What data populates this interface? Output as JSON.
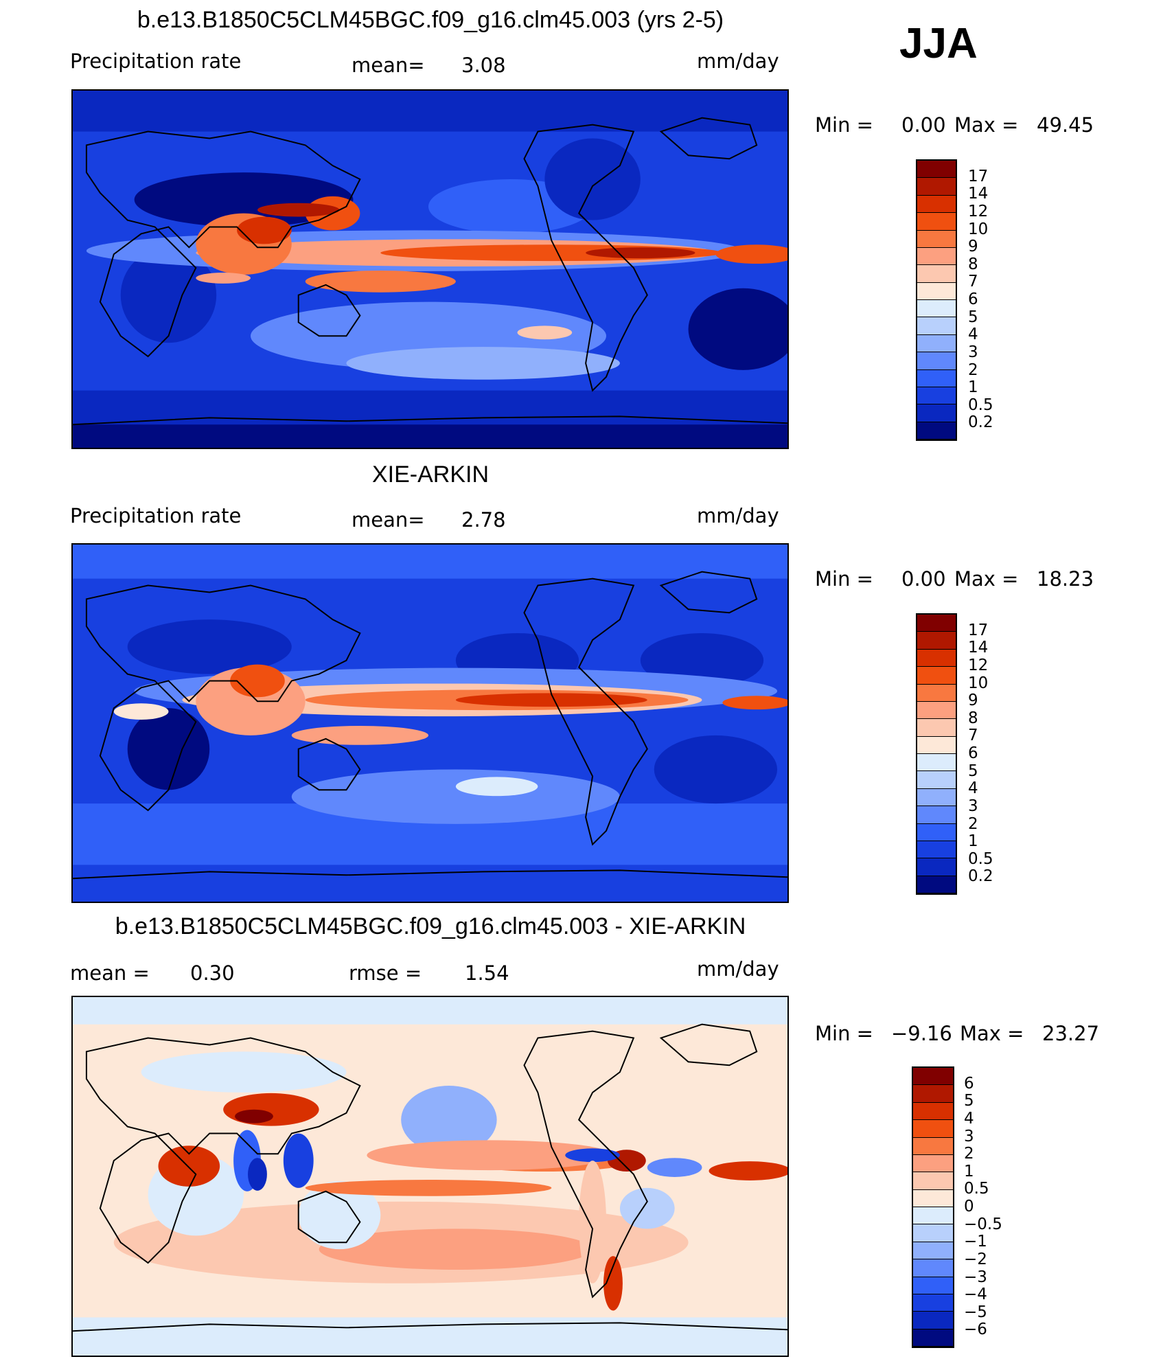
{
  "season": "JJA",
  "panels": [
    {
      "title": "b.e13.B1850C5CLM45BGC.f09_g16.clm45.003 (yrs 2-5)",
      "left_label": "Precipitation  rate",
      "stat_label": "mean=",
      "stat_value": "3.08",
      "units": "mm/day",
      "min_label": "Min  =",
      "min_value": "0.00",
      "max_label": "Max  =",
      "max_value": "49.45",
      "colorbar": {
        "labels": [
          "17",
          "14",
          "12",
          "10",
          "9",
          "8",
          "7",
          "6",
          "5",
          "4",
          "3",
          "2",
          "1",
          "0.5",
          "0.2"
        ],
        "colors": [
          "#800000",
          "#b01800",
          "#d83000",
          "#f05010",
          "#f87840",
          "#fca080",
          "#fcc8b0",
          "#fde8d8",
          "#dcecfc",
          "#b8d0fc",
          "#90b0fc",
          "#6088fc",
          "#3060f8",
          "#1840e0",
          "#0a28c0",
          "#000a80"
        ]
      }
    },
    {
      "title": "XIE-ARKIN",
      "left_label": "Precipitation  rate",
      "stat_label": "mean=",
      "stat_value": "2.78",
      "units": "mm/day",
      "min_label": "Min  =",
      "min_value": "0.00",
      "max_label": "Max  =",
      "max_value": "18.23",
      "colorbar": {
        "labels": [
          "17",
          "14",
          "12",
          "10",
          "9",
          "8",
          "7",
          "6",
          "5",
          "4",
          "3",
          "2",
          "1",
          "0.5",
          "0.2"
        ],
        "colors": [
          "#800000",
          "#b01800",
          "#d83000",
          "#f05010",
          "#f87840",
          "#fca080",
          "#fcc8b0",
          "#fde8d8",
          "#dcecfc",
          "#b8d0fc",
          "#90b0fc",
          "#6088fc",
          "#3060f8",
          "#1840e0",
          "#0a28c0",
          "#000a80"
        ]
      }
    },
    {
      "title": "b.e13.B1850C5CLM45BGC.f09_g16.clm45.003 - XIE-ARKIN",
      "left_label": "mean  =",
      "left_value": "0.30",
      "stat_label": "rmse  =",
      "stat_value": "1.54",
      "units": "mm/day",
      "min_label": "Min  =",
      "min_value": "−9.16",
      "max_label": "Max  =",
      "max_value": "23.27",
      "colorbar": {
        "labels": [
          "6",
          "5",
          "4",
          "3",
          "2",
          "1",
          "0.5",
          "0",
          "−0.5",
          "−1",
          "−2",
          "−3",
          "−4",
          "−5",
          "−6"
        ],
        "colors": [
          "#800000",
          "#b01800",
          "#d83000",
          "#f05010",
          "#f87840",
          "#fca080",
          "#fcc8b0",
          "#fde8d8",
          "#dcecfc",
          "#b8d0fc",
          "#90b0fc",
          "#6088fc",
          "#3060f8",
          "#1840e0",
          "#0a28c0",
          "#000a80"
        ]
      }
    }
  ]
}
